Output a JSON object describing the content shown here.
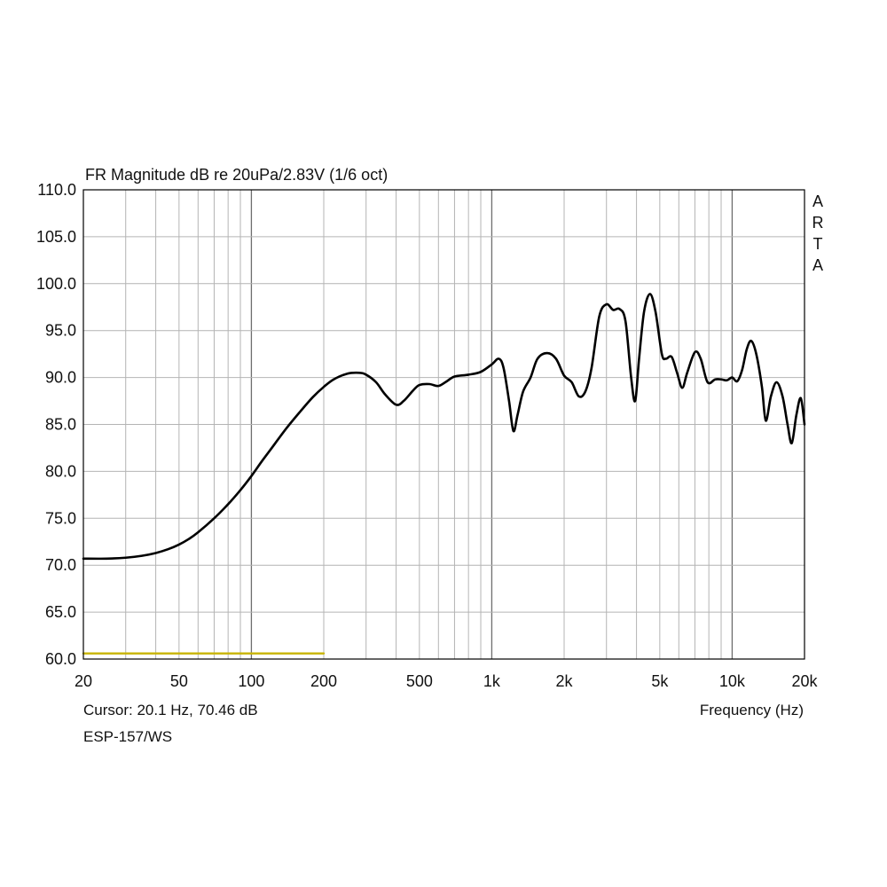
{
  "chart_data": {
    "type": "line",
    "title": "FR Magnitude dB re 20uPa/2.83V (1/6 oct)",
    "xlabel": "Frequency (Hz)",
    "ylabel": "",
    "x_scale": "log",
    "xlim": [
      20,
      20000
    ],
    "ylim": [
      60,
      110
    ],
    "grid": true,
    "y_ticks": [
      "110.0",
      "105.0",
      "100.0",
      "95.0",
      "90.0",
      "85.0",
      "80.0",
      "75.0",
      "70.0",
      "65.0",
      "60.0"
    ],
    "x_ticks": [
      {
        "value": 20,
        "label": "20"
      },
      {
        "value": 50,
        "label": "50"
      },
      {
        "value": 100,
        "label": "100"
      },
      {
        "value": 200,
        "label": "200"
      },
      {
        "value": 500,
        "label": "500"
      },
      {
        "value": 1000,
        "label": "1k"
      },
      {
        "value": 2000,
        "label": "2k"
      },
      {
        "value": 5000,
        "label": "5k"
      },
      {
        "value": 10000,
        "label": "10k"
      },
      {
        "value": 20000,
        "label": "20k"
      }
    ],
    "series": [
      {
        "color": "#000000",
        "points": [
          [
            20,
            70.7
          ],
          [
            25,
            70.7
          ],
          [
            30,
            70.8
          ],
          [
            35,
            71.0
          ],
          [
            40,
            71.3
          ],
          [
            45,
            71.7
          ],
          [
            50,
            72.2
          ],
          [
            55,
            72.8
          ],
          [
            60,
            73.5
          ],
          [
            70,
            75.0
          ],
          [
            80,
            76.5
          ],
          [
            90,
            78.0
          ],
          [
            100,
            79.5
          ],
          [
            110,
            81.0
          ],
          [
            120,
            82.3
          ],
          [
            140,
            84.6
          ],
          [
            160,
            86.4
          ],
          [
            180,
            87.9
          ],
          [
            200,
            89.0
          ],
          [
            220,
            89.8
          ],
          [
            250,
            90.4
          ],
          [
            280,
            90.5
          ],
          [
            300,
            90.3
          ],
          [
            330,
            89.5
          ],
          [
            360,
            88.2
          ],
          [
            400,
            87.1
          ],
          [
            430,
            87.5
          ],
          [
            470,
            88.6
          ],
          [
            500,
            89.2
          ],
          [
            550,
            89.3
          ],
          [
            600,
            89.1
          ],
          [
            650,
            89.6
          ],
          [
            700,
            90.1
          ],
          [
            800,
            90.3
          ],
          [
            900,
            90.6
          ],
          [
            1000,
            91.4
          ],
          [
            1070,
            92.0
          ],
          [
            1120,
            91.0
          ],
          [
            1180,
            87.5
          ],
          [
            1230,
            84.3
          ],
          [
            1280,
            86.0
          ],
          [
            1350,
            88.5
          ],
          [
            1450,
            90.0
          ],
          [
            1550,
            92.0
          ],
          [
            1700,
            92.6
          ],
          [
            1850,
            92.0
          ],
          [
            2000,
            90.2
          ],
          [
            2150,
            89.5
          ],
          [
            2300,
            88.0
          ],
          [
            2450,
            88.5
          ],
          [
            2600,
            91.0
          ],
          [
            2800,
            96.5
          ],
          [
            3000,
            97.8
          ],
          [
            3200,
            97.2
          ],
          [
            3400,
            97.3
          ],
          [
            3600,
            96.0
          ],
          [
            3800,
            90.0
          ],
          [
            3950,
            87.5
          ],
          [
            4100,
            92.0
          ],
          [
            4300,
            97.0
          ],
          [
            4550,
            98.9
          ],
          [
            4800,
            97.0
          ],
          [
            5100,
            92.5
          ],
          [
            5300,
            92.0
          ],
          [
            5600,
            92.2
          ],
          [
            5900,
            90.5
          ],
          [
            6200,
            88.9
          ],
          [
            6500,
            90.5
          ],
          [
            7000,
            92.7
          ],
          [
            7400,
            92.0
          ],
          [
            7900,
            89.5
          ],
          [
            8500,
            89.8
          ],
          [
            9000,
            89.8
          ],
          [
            9500,
            89.7
          ],
          [
            10000,
            90.0
          ],
          [
            10500,
            89.6
          ],
          [
            11000,
            90.8
          ],
          [
            11500,
            93.0
          ],
          [
            12000,
            93.9
          ],
          [
            12600,
            92.5
          ],
          [
            13300,
            89.0
          ],
          [
            13800,
            85.4
          ],
          [
            14500,
            88.0
          ],
          [
            15300,
            89.5
          ],
          [
            16200,
            88.0
          ],
          [
            17000,
            85.0
          ],
          [
            17700,
            83.0
          ],
          [
            18500,
            86.0
          ],
          [
            19300,
            87.8
          ],
          [
            20000,
            85.0
          ]
        ]
      },
      {
        "color": "#c8b400",
        "points": [
          [
            20,
            60.6
          ],
          [
            200,
            60.6
          ]
        ]
      }
    ],
    "annotations": {
      "side_label": [
        "A",
        "R",
        "T",
        "A"
      ],
      "cursor": "Cursor: 20.1 Hz, 70.46 dB",
      "device": "ESP-157/WS"
    }
  }
}
